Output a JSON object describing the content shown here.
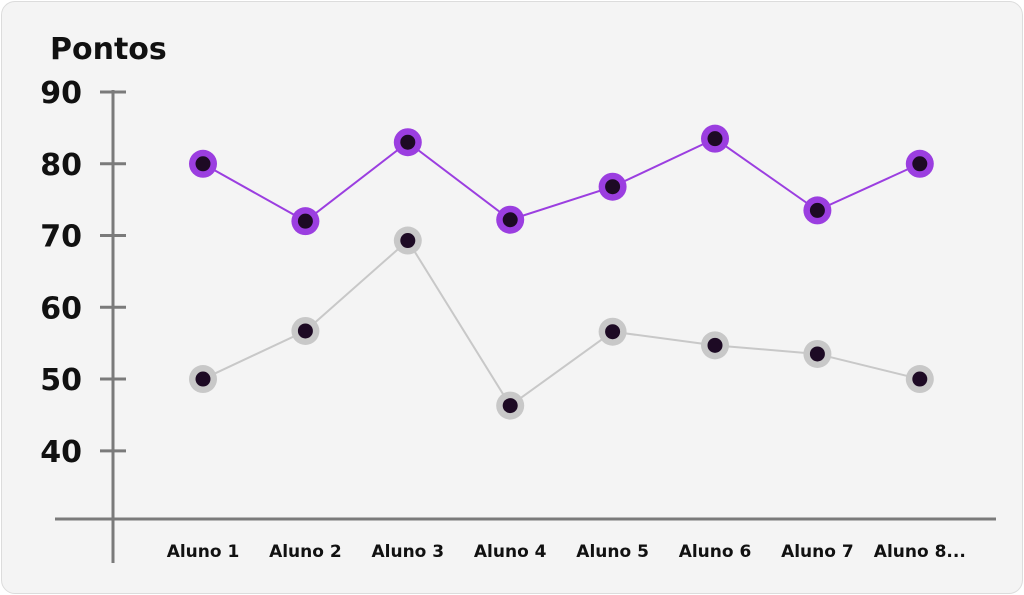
{
  "chart_data": {
    "type": "line",
    "ylabel": "Pontos",
    "xlabel": "",
    "categories": [
      "Aluno 1",
      "Aluno 2",
      "Aluno 3",
      "Aluno 4",
      "Aluno 5",
      "Aluno 6",
      "Aluno 7",
      "Aluno 8..."
    ],
    "yticks": [
      "90",
      "80",
      "70",
      "60",
      "50",
      "40"
    ],
    "ylim": [
      30.5,
      90
    ],
    "grid": false,
    "series": [
      {
        "color": "#9b3ee0",
        "values": [
          80,
          72,
          83,
          72.2,
          76.8,
          83.5,
          73.5,
          80
        ]
      },
      {
        "color": "#c8c8c8",
        "values": [
          50,
          56.7,
          69.3,
          46.3,
          56.6,
          54.7,
          53.5,
          50
        ]
      }
    ],
    "marker_center_color": "#1d0a24",
    "axis_color": "#7a7a7a"
  }
}
